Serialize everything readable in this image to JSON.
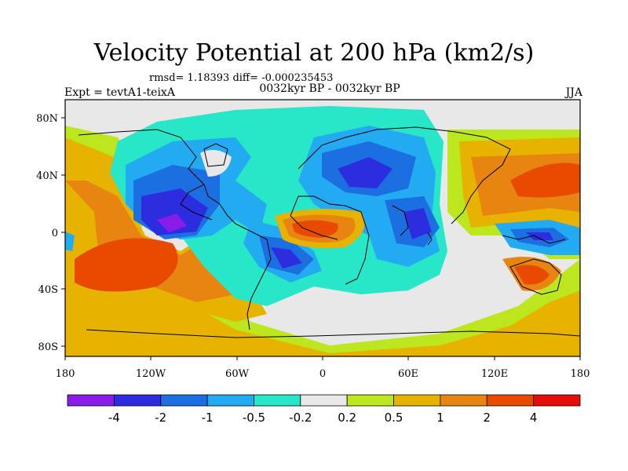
{
  "title": "Velocity Potential at 200 hPa (km2/s)",
  "stats": "rmsd= 1.18393 diff= -0.000235453",
  "experiment": "Expt = tevtA1-teixA",
  "period": "0032kyr BP - 0032kyr BP",
  "season": "JJA",
  "axes": {
    "x_ticks": [
      "180",
      "120W",
      "60W",
      "0",
      "60E",
      "120E",
      "180"
    ],
    "y_ticks": [
      "80N",
      "40N",
      "0",
      "40S",
      "80S"
    ]
  },
  "colorbar": {
    "colors": [
      "#8a1ce8",
      "#2d2de0",
      "#1c6fe0",
      "#23abf2",
      "#28e6c8",
      "#e8e8e8",
      "#bce61e",
      "#e6b400",
      "#e88410",
      "#e84a00",
      "#e60c0c"
    ],
    "labels": [
      "-4",
      "-2",
      "-1",
      "-0.5",
      "-0.2",
      "0.2",
      "0.5",
      "1",
      "2",
      "4"
    ]
  }
}
